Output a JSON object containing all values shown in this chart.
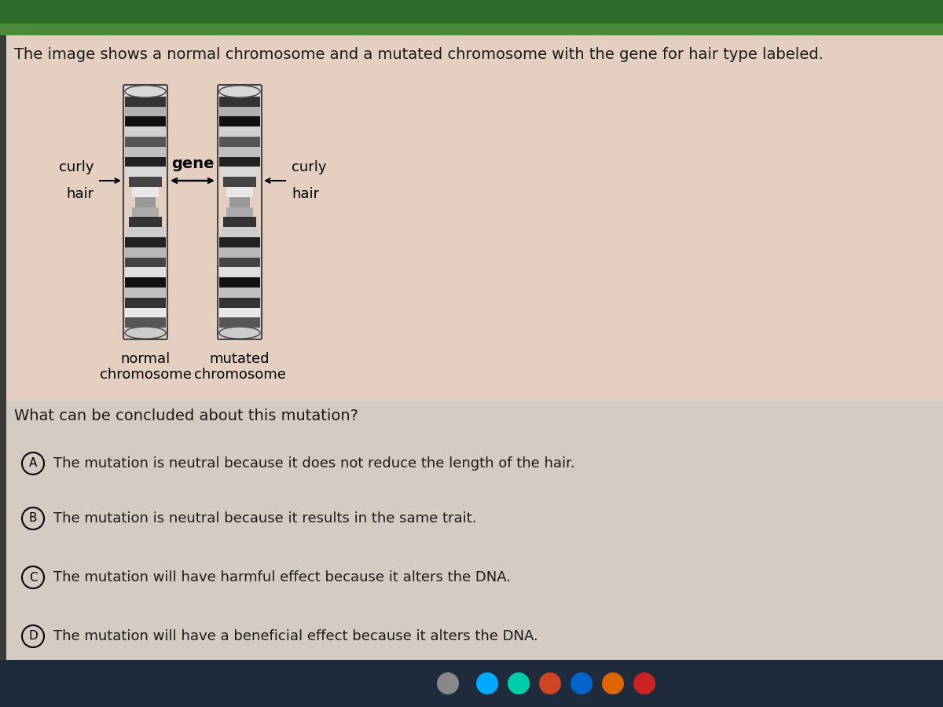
{
  "bg_color_top": "#e8d5c4",
  "bg_color_bottom": "#d8cfc8",
  "title_text": "The image shows a normal chromosome and a mutated chromosome with the gene for hair type labeled.",
  "title_fontsize": 14,
  "title_color": "#1a1a1a",
  "question_text": "What can be concluded about this mutation?",
  "question_fontsize": 14,
  "options": [
    {
      "label": "A",
      "text": "The mutation is neutral because it does not reduce the length of the hair."
    },
    {
      "label": "B",
      "text": "The mutation is neutral because it results in the same trait."
    },
    {
      "label": "C",
      "text": "The mutation will have harmful effect because it alters the DNA."
    },
    {
      "label": "D",
      "text": "The mutation will have a beneficial effect because it alters the DNA."
    }
  ],
  "option_fontsize": 13,
  "top_bar_color": "#2d6b28",
  "top_bar2_color": "#4a8a3a",
  "left_bar_color": "#2a2a2a",
  "taskbar_color": "#1c2b3a",
  "band_pattern": [
    "#e0e0e0",
    "#333333",
    "#b0b0b0",
    "#111111",
    "#d0d0d0",
    "#555555",
    "#c0c0c0",
    "#222222",
    "#d8d8d8",
    "#444444",
    "#e8e8e8",
    "#999999",
    "#aaaaaa",
    "#333333",
    "#cccccc",
    "#222222",
    "#b8b8b8",
    "#444444",
    "#e0e0e0",
    "#111111",
    "#c0c0c0",
    "#333333",
    "#e8e8e8",
    "#555555",
    "#d0d0d0"
  ]
}
